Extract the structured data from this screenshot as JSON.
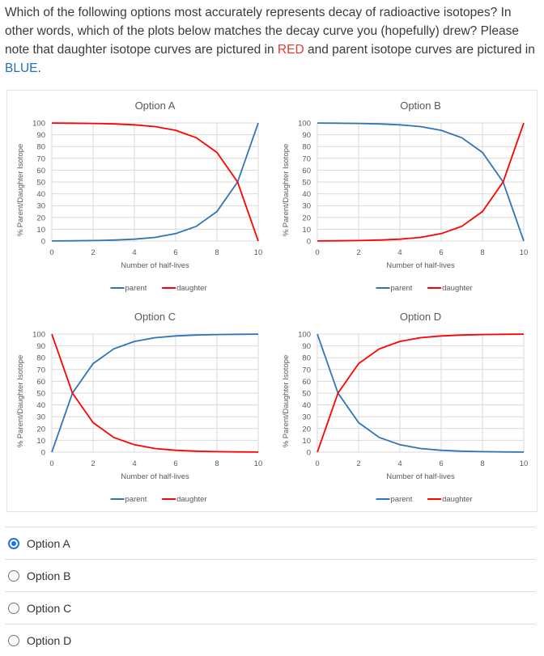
{
  "question": {
    "part1": "Which of the following options most accurately represents decay of radioactive isotopes? In other words, which of the plots below matches the decay curve you (hopefully) drew? Please note that daughter isotope curves are pictured in ",
    "red_word": "RED",
    "part2": " and parent isotope curves are pictured in ",
    "blue_word": "BLUE",
    "part3": "."
  },
  "colors": {
    "parent": "#2e75b6",
    "daughter": "#ff0000",
    "selected": "#1a73e8"
  },
  "chart_data": [
    {
      "type": "line",
      "title": "Option A",
      "xlabel": "Number of half-lives",
      "ylabel": "% Parent/Daughter Isotope",
      "x": [
        0,
        1,
        2,
        3,
        4,
        5,
        6,
        7,
        8,
        9,
        10
      ],
      "xticks": [
        0,
        2,
        4,
        6,
        8,
        10
      ],
      "yticks": [
        0,
        10,
        20,
        30,
        40,
        50,
        60,
        70,
        80,
        90,
        100
      ],
      "xlim": [
        0,
        10
      ],
      "ylim": [
        0,
        100
      ],
      "grid": true,
      "legend_position": "bottom",
      "series": [
        {
          "name": "parent",
          "values": [
            0.1,
            0.2,
            0.4,
            0.8,
            1.6,
            3.1,
            6.3,
            12.5,
            25,
            50,
            100
          ]
        },
        {
          "name": "daughter",
          "values": [
            99.9,
            99.8,
            99.6,
            99.2,
            98.4,
            96.9,
            93.8,
            87.5,
            75,
            50,
            0
          ]
        }
      ]
    },
    {
      "type": "line",
      "title": "Option B",
      "xlabel": "Number of half-lives",
      "ylabel": "% Parent/Daughter Isotope",
      "x": [
        0,
        1,
        2,
        3,
        4,
        5,
        6,
        7,
        8,
        9,
        10
      ],
      "xticks": [
        0,
        2,
        4,
        6,
        8,
        10
      ],
      "yticks": [
        0,
        10,
        20,
        30,
        40,
        50,
        60,
        70,
        80,
        90,
        100
      ],
      "xlim": [
        0,
        10
      ],
      "ylim": [
        0,
        100
      ],
      "grid": true,
      "legend_position": "bottom",
      "series": [
        {
          "name": "parent",
          "values": [
            99.9,
            99.8,
            99.6,
            99.2,
            98.4,
            96.9,
            93.8,
            87.5,
            75,
            50,
            0
          ]
        },
        {
          "name": "daughter",
          "values": [
            0.1,
            0.2,
            0.4,
            0.8,
            1.6,
            3.1,
            6.3,
            12.5,
            25,
            50,
            100
          ]
        }
      ]
    },
    {
      "type": "line",
      "title": "Option C",
      "xlabel": "Number of half-lives",
      "ylabel": "% Parent/Daughter Isotope",
      "x": [
        0,
        1,
        2,
        3,
        4,
        5,
        6,
        7,
        8,
        9,
        10
      ],
      "xticks": [
        0,
        2,
        4,
        6,
        8,
        10
      ],
      "yticks": [
        0,
        10,
        20,
        30,
        40,
        50,
        60,
        70,
        80,
        90,
        100
      ],
      "xlim": [
        0,
        10
      ],
      "ylim": [
        0,
        100
      ],
      "grid": true,
      "legend_position": "bottom",
      "series": [
        {
          "name": "parent",
          "values": [
            0,
            50,
            75,
            87.5,
            93.8,
            96.9,
            98.4,
            99.2,
            99.6,
            99.8,
            99.9
          ]
        },
        {
          "name": "daughter",
          "values": [
            100,
            50,
            25,
            12.5,
            6.3,
            3.1,
            1.6,
            0.8,
            0.4,
            0.2,
            0.1
          ]
        }
      ]
    },
    {
      "type": "line",
      "title": "Option D",
      "xlabel": "Number of half-lives",
      "ylabel": "% Parent/Daughter Isotope",
      "x": [
        0,
        1,
        2,
        3,
        4,
        5,
        6,
        7,
        8,
        9,
        10
      ],
      "xticks": [
        0,
        2,
        4,
        6,
        8,
        10
      ],
      "yticks": [
        0,
        10,
        20,
        30,
        40,
        50,
        60,
        70,
        80,
        90,
        100
      ],
      "xlim": [
        0,
        10
      ],
      "ylim": [
        0,
        100
      ],
      "grid": true,
      "legend_position": "bottom",
      "series": [
        {
          "name": "parent",
          "values": [
            100,
            50,
            25,
            12.5,
            6.3,
            3.1,
            1.6,
            0.8,
            0.4,
            0.2,
            0.1
          ]
        },
        {
          "name": "daughter",
          "values": [
            0,
            50,
            75,
            87.5,
            93.8,
            96.9,
            98.4,
            99.2,
            99.6,
            99.8,
            99.9
          ]
        }
      ]
    }
  ],
  "options": [
    {
      "label": "Option A",
      "selected": true
    },
    {
      "label": "Option B",
      "selected": false
    },
    {
      "label": "Option C",
      "selected": false
    },
    {
      "label": "Option D",
      "selected": false
    }
  ]
}
